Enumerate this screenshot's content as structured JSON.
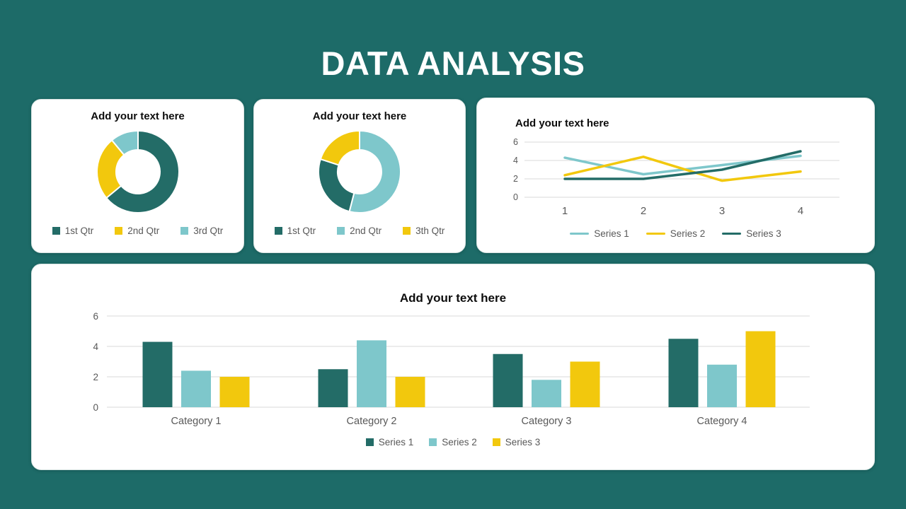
{
  "slide": {
    "title": "DATA ANALYSIS",
    "background": "#1D6B68"
  },
  "colors": {
    "teal_dark": "#236C67",
    "teal_light": "#7EC7CB",
    "yellow": "#F2C80D",
    "text_gray": "#595959",
    "gridline": "#D9D9D9",
    "title_black": "#0D0D0D",
    "card_white": "#FFFFFF"
  },
  "chart_data": [
    {
      "type": "pie",
      "subtype": "donut",
      "title": "Add your text here",
      "slices": [
        {
          "label": "1st Qtr",
          "color": "teal_dark",
          "percent": 64
        },
        {
          "label": "2nd Qtr",
          "color": "yellow",
          "percent": 25
        },
        {
          "label": "3rd Qtr",
          "color": "teal_light",
          "percent": 11
        }
      ],
      "legend": [
        {
          "label": "1st Qtr",
          "color": "teal_dark"
        },
        {
          "label": "2nd Qtr",
          "color": "yellow"
        },
        {
          "label": "3rd Qtr",
          "color": "teal_light"
        }
      ],
      "legend_position": "bottom"
    },
    {
      "type": "pie",
      "subtype": "donut",
      "title": "Add your text here",
      "slices": [
        {
          "label": "2nd Qtr",
          "color": "teal_light",
          "percent": 54
        },
        {
          "label": "1st Qtr",
          "color": "teal_dark",
          "percent": 26
        },
        {
          "label": "3th Qtr",
          "color": "yellow",
          "percent": 20
        }
      ],
      "legend": [
        {
          "label": "1st Qtr",
          "color": "teal_dark"
        },
        {
          "label": "2nd Qtr",
          "color": "teal_light"
        },
        {
          "label": "3th Qtr",
          "color": "yellow"
        }
      ],
      "legend_position": "bottom"
    },
    {
      "type": "line",
      "title": "Add your text here",
      "x": [
        1,
        2,
        3,
        4
      ],
      "xticklabels": [
        "1",
        "2",
        "3",
        "4"
      ],
      "yticks": [
        0,
        2,
        4,
        6
      ],
      "ylim": [
        0,
        6
      ],
      "grid": true,
      "series": [
        {
          "name": "Series 1",
          "color": "teal_light",
          "values": [
            4.3,
            2.5,
            3.5,
            4.5
          ]
        },
        {
          "name": "Series 2",
          "color": "yellow",
          "values": [
            2.4,
            4.4,
            1.8,
            2.8
          ]
        },
        {
          "name": "Series 3",
          "color": "teal_dark",
          "values": [
            2,
            2,
            3,
            5
          ]
        }
      ],
      "legend_position": "bottom"
    },
    {
      "type": "bar",
      "title": "Add your text here",
      "categories": [
        "Category 1",
        "Category 2",
        "Category 3",
        "Category 4"
      ],
      "yticks": [
        0,
        2,
        4,
        6
      ],
      "ylim": [
        0,
        6
      ],
      "grid": true,
      "series": [
        {
          "name": "Series 1",
          "color": "teal_dark",
          "values": [
            4.3,
            2.5,
            3.5,
            4.5
          ]
        },
        {
          "name": "Series 2",
          "color": "teal_light",
          "values": [
            2.4,
            4.4,
            1.8,
            2.8
          ]
        },
        {
          "name": "Series 3",
          "color": "yellow",
          "values": [
            2,
            2,
            3,
            5
          ]
        }
      ],
      "legend_position": "bottom"
    }
  ]
}
